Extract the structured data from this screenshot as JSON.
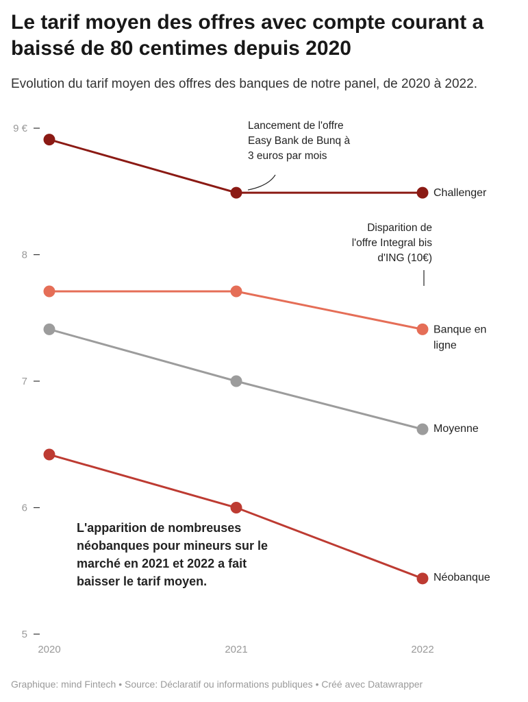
{
  "title": "Le tarif moyen des offres avec compte courant a baissé de 80 centimes depuis 2020",
  "subtitle": "Evolution du tarif moyen des offres des banques de notre panel, de 2020 à 2022.",
  "footer": "Graphique: mind Fintech • Source: Déclaratif ou informations publiques • Créé avec Datawrapper",
  "chart_data": {
    "type": "line",
    "title": "Le tarif moyen des offres avec compte courant a baissé de 80 centimes depuis 2020",
    "subtitle": "Evolution du tarif moyen des offres des banques de notre panel, de 2020 à 2022.",
    "x": [
      "2020",
      "2021",
      "2022"
    ],
    "ylim": [
      5,
      9
    ],
    "yticks": [
      {
        "value": 9,
        "label": "9 €"
      },
      {
        "value": 8,
        "label": "8"
      },
      {
        "value": 7,
        "label": "7"
      },
      {
        "value": 6,
        "label": "6"
      },
      {
        "value": 5,
        "label": "5"
      }
    ],
    "grid": false,
    "legend": "direct labels at right end of lines",
    "series": [
      {
        "name": "Challenger",
        "label_lines": [
          "Challenger"
        ],
        "color": "#8b1a14",
        "values": [
          8.91,
          8.49,
          8.49
        ]
      },
      {
        "name": "Banque en ligne",
        "label_lines": [
          "Banque en",
          "ligne"
        ],
        "color": "#e56e57",
        "values": [
          7.71,
          7.71,
          7.41
        ]
      },
      {
        "name": "Moyenne",
        "label_lines": [
          "Moyenne"
        ],
        "color": "#9c9c9c",
        "values": [
          7.41,
          7.0,
          6.62
        ]
      },
      {
        "name": "Néobanque",
        "label_lines": [
          "Néobanque"
        ],
        "color": "#bd3b32",
        "values": [
          6.42,
          6.0,
          5.44
        ]
      }
    ],
    "annotations": [
      {
        "lines": [
          "Lancement de l'offre",
          "Easy Bank de Bunq à",
          "3 euros par mois"
        ]
      },
      {
        "lines": [
          "Disparition de",
          "l'offre Integral bis",
          "d'ING (10€)"
        ]
      },
      {
        "lines": [
          "L'apparition de nombreuses",
          "néobanques pour mineurs sur le",
          "marché en 2021 et 2022 a fait",
          "baisser le tarif moyen."
        ]
      }
    ]
  }
}
